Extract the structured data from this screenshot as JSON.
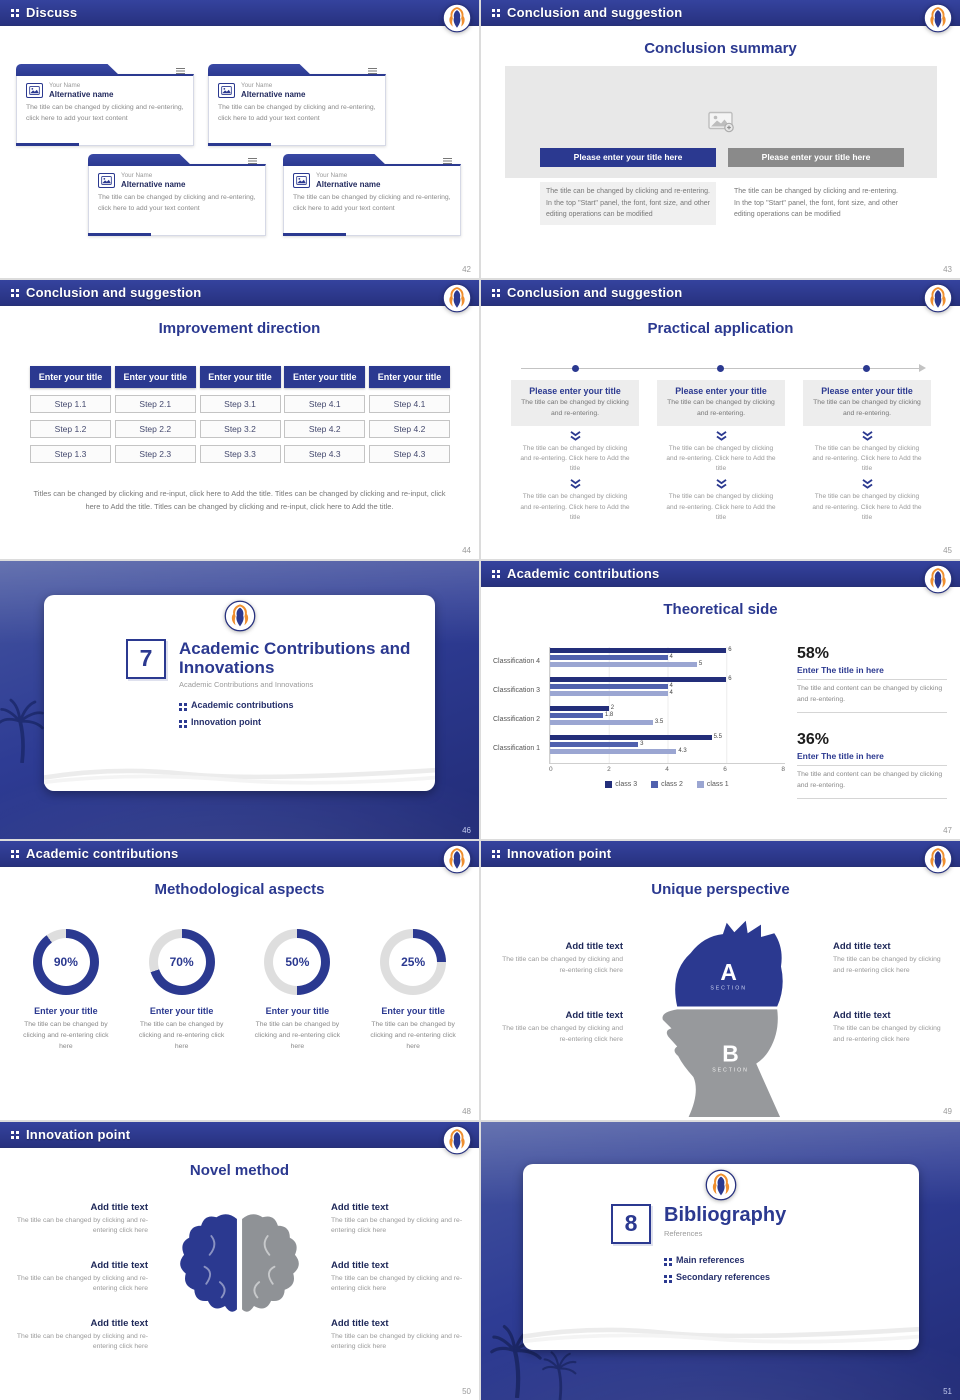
{
  "theme": {
    "accent": "#2b3990",
    "accent_dark": "#232e7a",
    "mane_orange": "#ef8f2f",
    "button_gray": "#8a8a8a"
  },
  "slides": {
    "discuss": {
      "header": "Discuss",
      "page": "42",
      "cards": [
        {
          "name": "Your Name",
          "alt": "Alternative name",
          "body": "The title can be changed by clicking and re-entering, click here to add your text content"
        },
        {
          "name": "Your Name",
          "alt": "Alternative name",
          "body": "The title can be changed by clicking and re-entering, click here to add your text content"
        },
        {
          "name": "Your Name",
          "alt": "Alternative name",
          "body": "The title can be changed by clicking and re-entering, click here to add your text content"
        },
        {
          "name": "Your Name",
          "alt": "Alternative name",
          "body": "The title can be changed by clicking and re-entering, click here to add your text content"
        }
      ]
    },
    "summary": {
      "header": "Conclusion and suggestion",
      "page": "43",
      "title": "Conclusion summary",
      "button_left": "Please enter your title here",
      "button_right": "Please enter your title here",
      "body": "The title can be changed by clicking and re-entering. In the top \"Start\" panel, the font, font size, and other editing operations can be modified"
    },
    "improvement": {
      "header": "Conclusion and suggestion",
      "page": "44",
      "title": "Improvement direction",
      "columns": [
        {
          "title": "Enter your title",
          "steps": [
            "Step 1.1",
            "Step 1.2",
            "Step 1.3"
          ]
        },
        {
          "title": "Enter your title",
          "steps": [
            "Step 2.1",
            "Step 2.2",
            "Step 2.3"
          ]
        },
        {
          "title": "Enter your title",
          "steps": [
            "Step 3.1",
            "Step 3.2",
            "Step 3.3"
          ]
        },
        {
          "title": "Enter your title",
          "steps": [
            "Step 4.1",
            "Step 4.2",
            "Step 4.3"
          ]
        },
        {
          "title": "Enter your title",
          "steps": [
            "Step 4.1",
            "Step 4.2",
            "Step 4.3"
          ]
        }
      ],
      "footer": "Titles can be changed by clicking and re-input, click here to Add the title. Titles can be changed by clicking and re-input, click here to Add the title. Titles can be changed by clicking and re-input, click here to Add the title."
    },
    "practical": {
      "header": "Conclusion and suggestion",
      "page": "45",
      "title": "Practical application",
      "columns": [
        {
          "title": "Please enter your title",
          "lead": "The title can be changed by clicking and re-entering.",
          "step1": "The title can be changed by clicking and re-entering. Click here to Add the title",
          "step2": "The title can be changed by clicking and re-entering. Click here to Add the title"
        },
        {
          "title": "Please enter your title",
          "lead": "The title can be changed by clicking and re-entering.",
          "step1": "The title can be changed by clicking and re-entering. Click here to Add the title",
          "step2": "The title can be changed by clicking and re-entering. Click here to Add the title"
        },
        {
          "title": "Please enter your title",
          "lead": "The title can be changed by clicking and re-entering.",
          "step1": "The title can be changed by clicking and re-entering. Click here to Add the title",
          "step2": "The title can be changed by clicking and re-entering. Click here to Add the title"
        }
      ]
    },
    "section7": {
      "page": "46",
      "number": "7",
      "title": "Academic Contributions and Innovations",
      "subtitle": "Academic Contributions and Innovations",
      "bullets": [
        "Academic contributions",
        "Innovation point"
      ]
    },
    "theoretical": {
      "header": "Academic contributions",
      "page": "47",
      "title": "Theoretical side",
      "stats": [
        {
          "pct": "58%",
          "title": "Enter The title in here",
          "body": "The title and content can be changed by clicking and re-entering."
        },
        {
          "pct": "36%",
          "title": "Enter The title in here",
          "body": "The title and content can be changed by clicking and re-entering."
        }
      ]
    },
    "methodological": {
      "header": "Academic contributions",
      "page": "48",
      "title": "Methodological aspects",
      "donuts": [
        {
          "pct": 90,
          "label": "90%",
          "title": "Enter your title",
          "body": "The title can be changed by clicking and re-entering click here"
        },
        {
          "pct": 70,
          "label": "70%",
          "title": "Enter your title",
          "body": "The title can be changed by clicking and re-entering click here"
        },
        {
          "pct": 50,
          "label": "50%",
          "title": "Enter your title",
          "body": "The title can be changed by clicking and re-entering click here"
        },
        {
          "pct": 25,
          "label": "25%",
          "title": "Enter your title",
          "body": "The title can be changed by clicking and re-entering click here"
        }
      ]
    },
    "unique": {
      "header": "Innovation point",
      "page": "49",
      "title": "Unique perspective",
      "head": {
        "a": "A",
        "a_label": "SECTION",
        "b": "B",
        "b_label": "SECTION"
      },
      "items_left": [
        {
          "title": "Add title text",
          "body": "The title can be changed by clicking and re-entering click here"
        },
        {
          "title": "Add title text",
          "body": "The title can be changed by clicking and re-entering click here"
        }
      ],
      "items_right": [
        {
          "title": "Add title text",
          "body": "The title can be changed by clicking and re-entering click here"
        },
        {
          "title": "Add title text",
          "body": "The title can be changed by clicking and re-entering click here"
        }
      ]
    },
    "novel": {
      "header": "Innovation point",
      "page": "50",
      "title": "Novel method",
      "items_left": [
        {
          "title": "Add title text",
          "body": "The title can be changed by clicking and re-entering click here"
        },
        {
          "title": "Add title text",
          "body": "The title can be changed by clicking and re-entering click here"
        },
        {
          "title": "Add title text",
          "body": "The title can be changed by clicking and re-entering click here"
        }
      ],
      "items_right": [
        {
          "title": "Add title text",
          "body": "The title can be changed by clicking and re-entering click here"
        },
        {
          "title": "Add title text",
          "body": "The title can be changed by clicking and re-entering click here"
        },
        {
          "title": "Add title text",
          "body": "The title can be changed by clicking and re-entering click here"
        }
      ]
    },
    "section8": {
      "page": "51",
      "number": "8",
      "title": "Bibliography",
      "subtitle": "References",
      "bullets": [
        "Main references",
        "Secondary references"
      ]
    }
  },
  "chart_data": {
    "type": "bar",
    "orientation": "horizontal",
    "title": "Theoretical side",
    "groups": [
      {
        "category": "Classification 4",
        "values": [
          6,
          4,
          5
        ]
      },
      {
        "category": "Classification 3",
        "values": [
          6,
          4,
          4
        ]
      },
      {
        "category": "Classification 2",
        "values": [
          2,
          1.8,
          3.5
        ]
      },
      {
        "category": "Classification 1",
        "values": [
          5.5,
          3,
          4.3
        ]
      }
    ],
    "xlim": [
      0,
      8
    ],
    "xticks": [
      0,
      2,
      4,
      6,
      8
    ],
    "grid": true,
    "legend": [
      "class 3",
      "class 2",
      "class 1"
    ],
    "legend_position": "bottom",
    "colors": [
      "#232e7a",
      "#5061ae",
      "#9ba6d2"
    ],
    "legend_colors": [
      "#232e7a",
      "#5061ae",
      "#9ba6d2"
    ]
  }
}
